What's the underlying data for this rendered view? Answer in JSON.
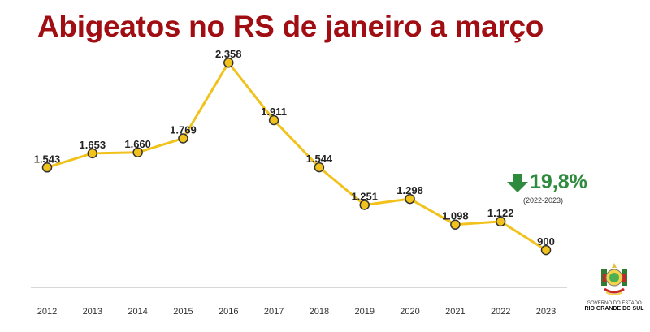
{
  "chart_data": {
    "type": "line",
    "title": "Abigeatos no RS de janeiro a março",
    "categories": [
      "2012",
      "2013",
      "2014",
      "2015",
      "2016",
      "2017",
      "2018",
      "2019",
      "2020",
      "2021",
      "2022",
      "2023"
    ],
    "series": [
      {
        "values": [
          1543,
          1653,
          1660,
          1769,
          2358,
          1911,
          1544,
          1251,
          1298,
          1098,
          1122,
          900
        ],
        "labels": [
          "1.543",
          "1.653",
          "1.660",
          "1.769",
          "2.358",
          "1.911",
          "1.544",
          "1.251",
          "1.298",
          "1.098",
          "1.122",
          "900"
        ]
      }
    ],
    "ylim": [
      610,
      2650
    ],
    "grid": false,
    "legend": "none",
    "annotation": {
      "icon": "arrow-down-icon",
      "value": "19,8%",
      "period": "(2022-2023)"
    },
    "colors": {
      "title": "#a00d12",
      "line": "#f1c21b",
      "marker_edge": "#333333",
      "annotation": "#2e8b3e",
      "axis": "#cccccc"
    }
  },
  "logo": {
    "line1": "GOVERNO DO ESTADO",
    "line2": "RIO GRANDE DO SUL"
  }
}
